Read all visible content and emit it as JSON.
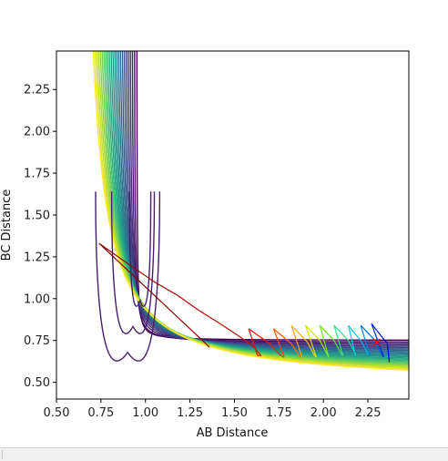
{
  "chart_data": {
    "type": "line",
    "chart_kind": "contour plot with trajectory overlay",
    "title": "",
    "xlabel": "AB Distance",
    "ylabel": "BC Distance",
    "xlim": [
      0.5,
      2.48
    ],
    "ylim": [
      0.4,
      2.48
    ],
    "xticks": [
      "0.50",
      "0.75",
      "1.00",
      "1.25",
      "1.50",
      "1.75",
      "2.00",
      "2.25"
    ],
    "yticks": [
      "0.50",
      "0.75",
      "1.00",
      "1.25",
      "1.50",
      "1.75",
      "2.00",
      "2.25"
    ],
    "colormap": "viridis",
    "grid": false,
    "legend": "none",
    "contour_level_count": 24,
    "contour_colors": [
      "#440154",
      "#472d7b",
      "#3b528b",
      "#2c728e",
      "#21918c",
      "#28ae80",
      "#5ec962",
      "#addc30",
      "#fde725"
    ],
    "trajectory_color_start": "#8b0000",
    "trajectory_color_end": "#0000cd",
    "trajectory_points": [
      [
        0.74,
        1.33
      ],
      [
        0.9,
        1.21
      ],
      [
        1.05,
        1.1
      ],
      [
        1.18,
        1.02
      ],
      [
        1.3,
        0.93
      ],
      [
        1.42,
        0.85
      ],
      [
        1.52,
        0.78
      ],
      [
        1.6,
        0.72
      ],
      [
        1.65,
        0.66
      ],
      [
        1.63,
        0.66
      ],
      [
        1.58,
        0.82
      ],
      [
        1.7,
        0.73
      ],
      [
        1.76,
        0.66
      ],
      [
        1.78,
        0.65
      ],
      [
        1.72,
        0.82
      ],
      [
        1.82,
        0.73
      ],
      [
        1.87,
        0.65
      ],
      [
        1.88,
        0.65
      ],
      [
        1.82,
        0.84
      ],
      [
        1.91,
        0.74
      ],
      [
        1.95,
        0.66
      ],
      [
        1.96,
        0.65
      ],
      [
        1.9,
        0.84
      ],
      [
        1.98,
        0.75
      ],
      [
        2.02,
        0.67
      ],
      [
        2.03,
        0.65
      ],
      [
        1.98,
        0.84
      ],
      [
        2.06,
        0.75
      ],
      [
        2.1,
        0.67
      ],
      [
        2.11,
        0.66
      ],
      [
        2.06,
        0.84
      ],
      [
        2.14,
        0.75
      ],
      [
        2.18,
        0.67
      ],
      [
        2.18,
        0.66
      ],
      [
        2.14,
        0.84
      ],
      [
        2.21,
        0.75
      ],
      [
        2.25,
        0.67
      ],
      [
        2.26,
        0.66
      ],
      [
        2.21,
        0.84
      ],
      [
        2.29,
        0.75
      ],
      [
        2.33,
        0.66
      ],
      [
        2.34,
        0.65
      ],
      [
        2.27,
        0.85
      ],
      [
        2.36,
        0.73
      ],
      [
        2.37,
        0.62
      ]
    ],
    "trajectory_return_segment": [
      [
        0.74,
        1.33
      ],
      [
        1.36,
        0.71
      ]
    ],
    "marker": {
      "symbol": "x",
      "x": 2.3,
      "y": 0.74,
      "color": "#ff0000"
    }
  }
}
